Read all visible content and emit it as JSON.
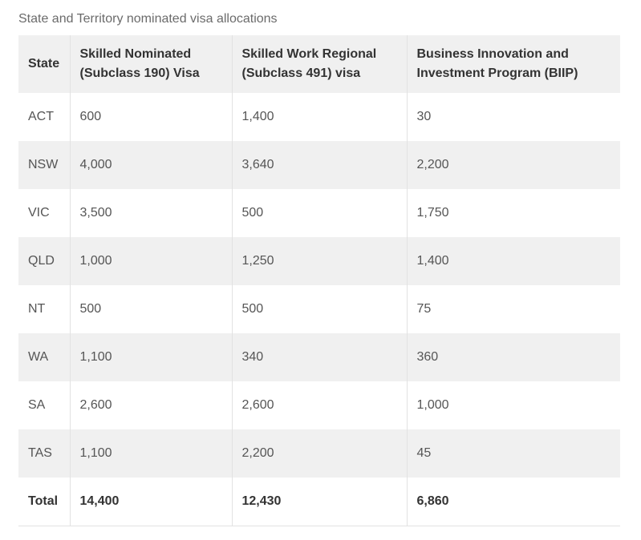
{
  "caption": "State and Territory nominated visa allocations",
  "table": {
    "headers": [
      "State",
      "Skilled Nominated (Subclass 190) Visa",
      "Skilled Work Regional (Subclass 491) visa",
      "Business Innovation and Investment Program (BIIP)"
    ],
    "rows": [
      [
        "ACT",
        "600",
        "1,400",
        "30"
      ],
      [
        "NSW",
        "4,000",
        "3,640",
        "2,200"
      ],
      [
        "VIC",
        "3,500",
        "500",
        "1,750"
      ],
      [
        "QLD",
        "1,000",
        "1,250",
        "1,400"
      ],
      [
        "NT",
        "500",
        "500",
        "75"
      ],
      [
        "WA",
        "1,100",
        "340",
        "360"
      ],
      [
        "SA",
        "2,600",
        "2,600",
        "1,000"
      ],
      [
        "TAS",
        "1,100",
        "2,200",
        "45"
      ]
    ],
    "total": [
      "Total",
      "14,400",
      "12,430",
      "6,860"
    ]
  }
}
